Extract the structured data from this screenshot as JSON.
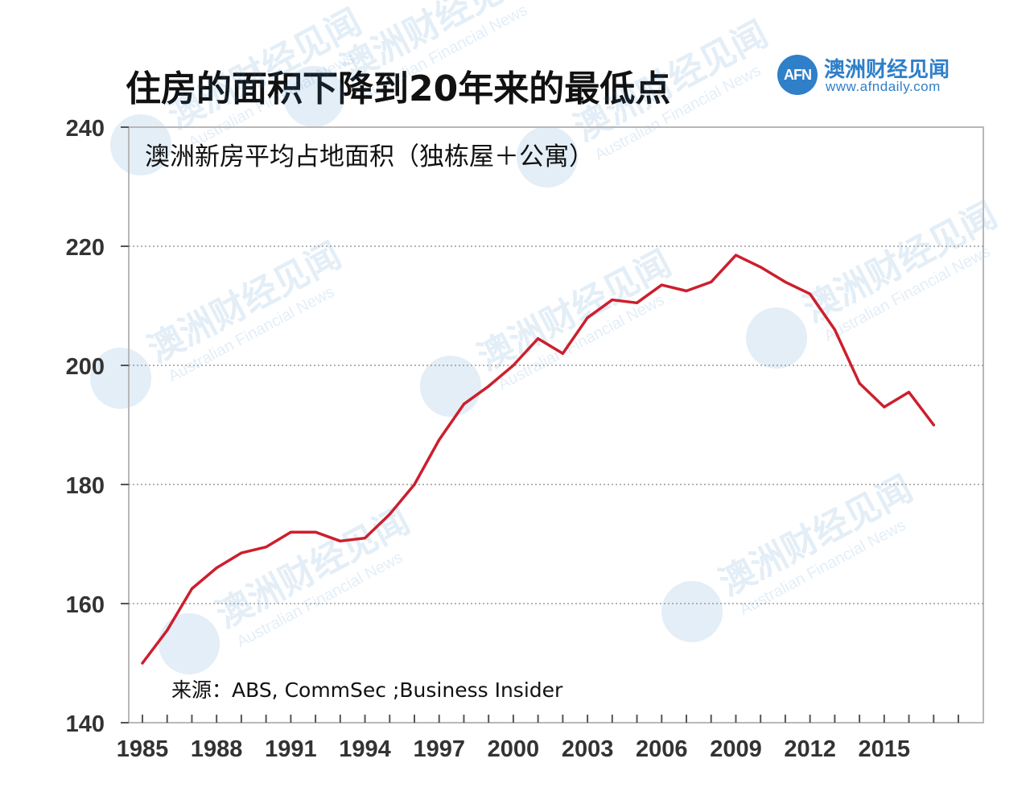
{
  "page": {
    "title": "住房的面积下降到20年来的最低点"
  },
  "brand": {
    "logo_text": "AFN",
    "name": "澳洲财经见闻",
    "url": "www.afndaily.com",
    "watermark_sub": "Australian Financial News",
    "color": "#2f7fc9"
  },
  "chart_data": {
    "type": "line",
    "title": "澳洲新房平均占地面积（独栋屋＋公寓）",
    "source": "来源：ABS, CommSec ;Business Insider",
    "xlabel": "",
    "ylabel": "",
    "ylim": [
      140,
      240
    ],
    "xlim": [
      1985,
      2018
    ],
    "y_ticks": [
      140,
      160,
      180,
      200,
      220,
      240
    ],
    "x_ticks": [
      1985,
      1988,
      1991,
      1994,
      1997,
      2000,
      2003,
      2006,
      2009,
      2012,
      2015
    ],
    "grid": "horizontal dotted",
    "line_color": "#cc1f2e",
    "series": [
      {
        "x": [
          1985,
          1986,
          1987,
          1988,
          1989,
          1990,
          1991,
          1992,
          1993,
          1994,
          1995,
          1996,
          1997,
          1998,
          1999,
          2000,
          2001,
          2002,
          2003,
          2004,
          2005,
          2006,
          2007,
          2008,
          2009,
          2010,
          2011,
          2012,
          2013,
          2014,
          2015,
          2016,
          2017
        ],
        "values": [
          150,
          155.5,
          162.5,
          166,
          168.5,
          169.5,
          172,
          172,
          170.5,
          171,
          175,
          180,
          187.5,
          193.5,
          196.5,
          200,
          204.5,
          202,
          208,
          211,
          210.5,
          213.5,
          212.5,
          214,
          218.5,
          216.5,
          214,
          212,
          206,
          197,
          193,
          195.5,
          190
        ]
      }
    ]
  }
}
